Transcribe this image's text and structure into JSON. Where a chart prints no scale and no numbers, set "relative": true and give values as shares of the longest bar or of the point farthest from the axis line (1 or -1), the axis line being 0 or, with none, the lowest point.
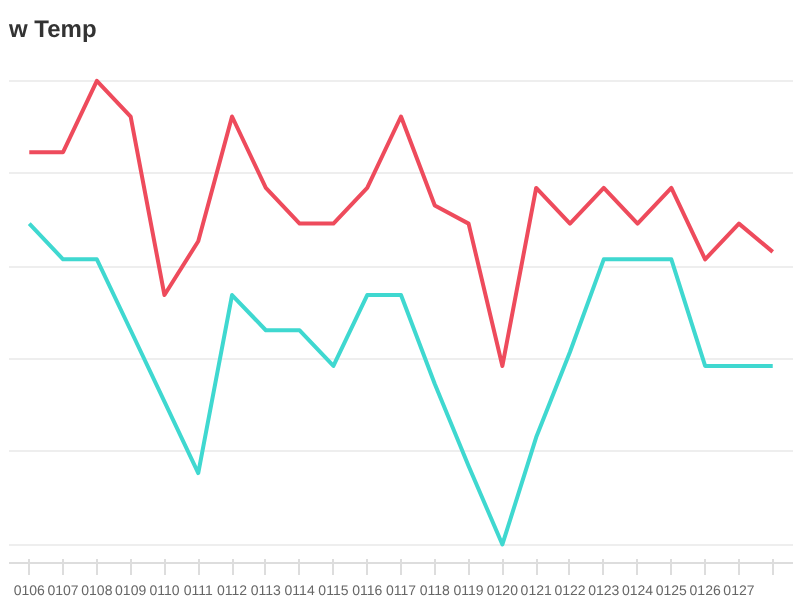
{
  "chart_data": {
    "type": "line",
    "title": "w Temp",
    "relative": true,
    "grid": "y",
    "marker": "none",
    "line_style": "solid",
    "categories": [
      "0106",
      "0107",
      "0108",
      "0109",
      "0110",
      "0111",
      "0112",
      "0113",
      "0114",
      "0115",
      "0116",
      "0117",
      "0118",
      "0119",
      "0120",
      "0121",
      "0122",
      "0123",
      "0124",
      "0125",
      "0126",
      "0127",
      null
    ],
    "series": [
      {
        "color": "#ee4b5c",
        "values": [
          0.846,
          0.846,
          1,
          0.923,
          0.538,
          0.654,
          0.923,
          0.769,
          0.692,
          0.692,
          0.769,
          0.923,
          0.731,
          0.692,
          0.385,
          0.769,
          0.692,
          0.769,
          0.692,
          0.769,
          0.615,
          0.692,
          0.631
        ]
      },
      {
        "color": "#3fd8d0",
        "values": [
          0.692,
          0.615,
          0.615,
          0.462,
          0.308,
          0.154,
          0.538,
          0.462,
          0.462,
          0.385,
          0.538,
          0.538,
          0.346,
          0.169,
          0,
          0.231,
          0.415,
          0.615,
          0.615,
          0.615,
          0.385,
          0.385,
          0.385
        ]
      }
    ]
  }
}
